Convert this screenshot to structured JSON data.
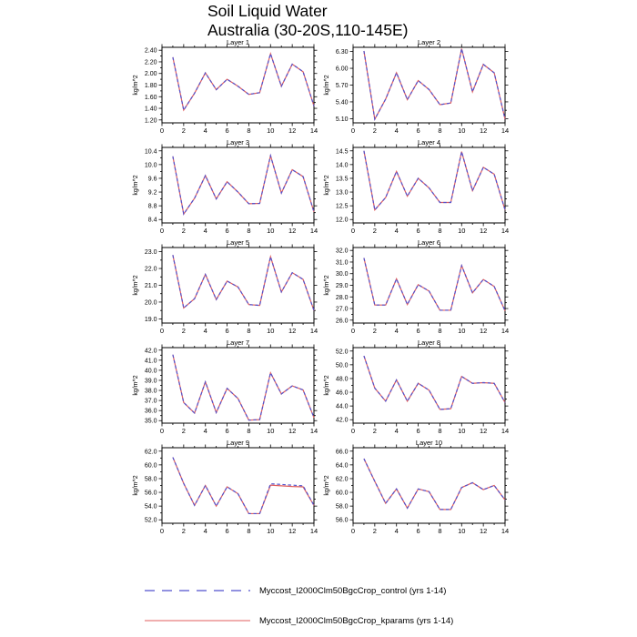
{
  "title": {
    "line1": "Soil Liquid Water",
    "line2": "Australia (30-20S,110-145E)"
  },
  "ylabel": "kg/m^2",
  "colors": {
    "control": "#5252cd",
    "kparams": "#e05e5e",
    "axis": "#000000"
  },
  "legend": [
    {
      "label": "Myccost_I2000Clm50BgcCrop_control (yrs 1-14)",
      "style": "dashed",
      "color": "#5252cd"
    },
    {
      "label": "Myccost_I2000Clm50BgcCrop_kparams (yrs 1-14)",
      "style": "solid",
      "color": "#e05e5e"
    }
  ],
  "chart_data": [
    {
      "type": "line",
      "title": "Layer 1",
      "ylabel": "kg/m^2",
      "x": [
        1,
        2,
        3,
        4,
        5,
        6,
        7,
        8,
        9,
        10,
        11,
        12,
        13,
        14
      ],
      "xlim": [
        0,
        14
      ],
      "xticks": {
        "start": 0,
        "end": 14,
        "step": 2,
        "minor": 1
      },
      "ylim": [
        1.15,
        2.45
      ],
      "yticks": {
        "start": 1.2,
        "end": 2.4,
        "step": 0.2,
        "decimals": 2
      },
      "series": [
        {
          "name": "Myccost_I2000Clm50BgcCrop_control",
          "values": [
            2.28,
            1.37,
            1.66,
            2.01,
            1.72,
            1.9,
            1.78,
            1.64,
            1.67,
            2.34,
            1.78,
            2.16,
            2.03,
            1.44
          ]
        },
        {
          "name": "Myccost_I2000Clm50BgcCrop_kparams",
          "values": [
            2.28,
            1.37,
            1.66,
            2.01,
            1.72,
            1.9,
            1.78,
            1.64,
            1.67,
            2.34,
            1.78,
            2.16,
            2.03,
            1.44
          ]
        }
      ]
    },
    {
      "type": "line",
      "title": "Layer 2",
      "ylabel": "kg/m^2",
      "x": [
        1,
        2,
        3,
        4,
        5,
        6,
        7,
        8,
        9,
        10,
        11,
        12,
        13,
        14
      ],
      "xlim": [
        0,
        14
      ],
      "xticks": {
        "start": 0,
        "end": 14,
        "step": 2,
        "minor": 1
      },
      "ylim": [
        5.025,
        6.375
      ],
      "yticks": {
        "start": 5.1,
        "end": 6.3,
        "step": 0.3,
        "decimals": 2
      },
      "series": [
        {
          "name": "Myccost_I2000Clm50BgcCrop_control",
          "values": [
            6.31,
            5.09,
            5.45,
            5.92,
            5.44,
            5.78,
            5.62,
            5.35,
            5.38,
            6.35,
            5.58,
            6.07,
            5.92,
            5.09
          ]
        },
        {
          "name": "Myccost_I2000Clm50BgcCrop_kparams",
          "values": [
            6.31,
            5.09,
            5.45,
            5.92,
            5.44,
            5.78,
            5.62,
            5.35,
            5.38,
            6.35,
            5.58,
            6.07,
            5.92,
            5.09
          ]
        }
      ]
    },
    {
      "type": "line",
      "title": "Layer 3",
      "ylabel": "kg/m^2",
      "x": [
        1,
        2,
        3,
        4,
        5,
        6,
        7,
        8,
        9,
        10,
        11,
        12,
        13,
        14
      ],
      "xlim": [
        0,
        14
      ],
      "xticks": {
        "start": 0,
        "end": 14,
        "step": 2,
        "minor": 1
      },
      "ylim": [
        8.3,
        10.5
      ],
      "yticks": {
        "start": 8.4,
        "end": 10.4,
        "step": 0.4,
        "decimals": 1
      },
      "series": [
        {
          "name": "Myccost_I2000Clm50BgcCrop_control",
          "values": [
            10.24,
            8.56,
            9.02,
            9.68,
            9.0,
            9.5,
            9.2,
            8.86,
            8.87,
            10.26,
            9.17,
            9.85,
            9.65,
            8.62
          ]
        },
        {
          "name": "Myccost_I2000Clm50BgcCrop_kparams",
          "values": [
            10.24,
            8.56,
            9.02,
            9.68,
            9.0,
            9.5,
            9.2,
            8.86,
            8.87,
            10.26,
            9.17,
            9.85,
            9.65,
            8.62
          ]
        }
      ]
    },
    {
      "type": "line",
      "title": "Layer 4",
      "ylabel": "kg/m^2",
      "x": [
        1,
        2,
        3,
        4,
        5,
        6,
        7,
        8,
        9,
        10,
        11,
        12,
        13,
        14
      ],
      "xlim": [
        0,
        14
      ],
      "xticks": {
        "start": 0,
        "end": 14,
        "step": 2,
        "minor": 1
      },
      "ylim": [
        11.875,
        14.625
      ],
      "yticks": {
        "start": 12.0,
        "end": 14.5,
        "step": 0.5,
        "decimals": 1
      },
      "series": [
        {
          "name": "Myccost_I2000Clm50BgcCrop_control",
          "values": [
            14.5,
            12.35,
            12.8,
            13.75,
            12.85,
            13.5,
            13.15,
            12.62,
            12.62,
            14.47,
            13.05,
            13.9,
            13.65,
            12.35
          ]
        },
        {
          "name": "Myccost_I2000Clm50BgcCrop_kparams",
          "values": [
            14.5,
            12.35,
            12.8,
            13.75,
            12.85,
            13.5,
            13.15,
            12.62,
            12.62,
            14.47,
            13.05,
            13.9,
            13.65,
            12.35
          ]
        }
      ]
    },
    {
      "type": "line",
      "title": "Layer 5",
      "ylabel": "kg/m^2",
      "x": [
        1,
        2,
        3,
        4,
        5,
        6,
        7,
        8,
        9,
        10,
        11,
        12,
        13,
        14
      ],
      "xlim": [
        0,
        14
      ],
      "xticks": {
        "start": 0,
        "end": 14,
        "step": 2,
        "minor": 1
      },
      "ylim": [
        18.75,
        23.25
      ],
      "yticks": {
        "start": 19.0,
        "end": 23.0,
        "step": 1.0,
        "decimals": 1
      },
      "series": [
        {
          "name": "Myccost_I2000Clm50BgcCrop_control",
          "values": [
            22.8,
            19.65,
            20.2,
            21.65,
            20.15,
            21.25,
            20.9,
            19.85,
            19.8,
            22.7,
            20.6,
            21.75,
            21.35,
            19.5
          ]
        },
        {
          "name": "Myccost_I2000Clm50BgcCrop_kparams",
          "values": [
            22.8,
            19.65,
            20.2,
            21.65,
            20.15,
            21.25,
            20.9,
            19.85,
            19.8,
            22.7,
            20.6,
            21.75,
            21.35,
            19.5
          ]
        }
      ]
    },
    {
      "type": "line",
      "title": "Layer 6",
      "ylabel": "kg/m^2",
      "x": [
        1,
        2,
        3,
        4,
        5,
        6,
        7,
        8,
        9,
        10,
        11,
        12,
        13,
        14
      ],
      "xlim": [
        0,
        14
      ],
      "xticks": {
        "start": 0,
        "end": 14,
        "step": 2,
        "minor": 1
      },
      "ylim": [
        25.75,
        32.25
      ],
      "yticks": {
        "start": 26.0,
        "end": 32.0,
        "step": 1.0,
        "decimals": 1
      },
      "series": [
        {
          "name": "Myccost_I2000Clm50BgcCrop_control",
          "values": [
            31.35,
            27.3,
            27.3,
            29.55,
            27.35,
            29.05,
            28.5,
            26.85,
            26.85,
            30.7,
            28.35,
            29.5,
            28.9,
            26.8
          ]
        },
        {
          "name": "Myccost_I2000Clm50BgcCrop_kparams",
          "values": [
            31.35,
            27.3,
            27.3,
            29.55,
            27.35,
            29.05,
            28.5,
            26.85,
            26.85,
            30.7,
            28.35,
            29.5,
            28.9,
            26.8
          ]
        }
      ]
    },
    {
      "type": "line",
      "title": "Layer 7",
      "ylabel": "kg/m^2",
      "x": [
        1,
        2,
        3,
        4,
        5,
        6,
        7,
        8,
        9,
        10,
        11,
        12,
        13,
        14
      ],
      "xlim": [
        0,
        14
      ],
      "xticks": {
        "start": 0,
        "end": 14,
        "step": 2,
        "minor": 1
      },
      "ylim": [
        34.75,
        42.25
      ],
      "yticks": {
        "start": 35.0,
        "end": 42.0,
        "step": 1.0,
        "decimals": 1
      },
      "series": [
        {
          "name": "Myccost_I2000Clm50BgcCrop_control",
          "values": [
            41.55,
            36.8,
            35.75,
            38.85,
            35.8,
            38.2,
            37.2,
            35.05,
            35.1,
            39.75,
            37.65,
            38.45,
            38.05,
            35.3
          ]
        },
        {
          "name": "Myccost_I2000Clm50BgcCrop_kparams",
          "values": [
            41.55,
            36.8,
            35.75,
            38.85,
            35.8,
            38.2,
            37.2,
            35.05,
            35.1,
            39.75,
            37.65,
            38.45,
            38.05,
            35.3
          ]
        }
      ]
    },
    {
      "type": "line",
      "title": "Layer 8",
      "ylabel": "kg/m^2",
      "x": [
        1,
        2,
        3,
        4,
        5,
        6,
        7,
        8,
        9,
        10,
        11,
        12,
        13,
        14
      ],
      "xlim": [
        0,
        14
      ],
      "xticks": {
        "start": 0,
        "end": 14,
        "step": 2,
        "minor": 1
      },
      "ylim": [
        41.5,
        52.5
      ],
      "yticks": {
        "start": 42.0,
        "end": 52.0,
        "step": 2.0,
        "decimals": 1
      },
      "series": [
        {
          "name": "Myccost_I2000Clm50BgcCrop_control",
          "values": [
            51.3,
            46.6,
            44.7,
            47.8,
            44.7,
            47.3,
            46.3,
            43.5,
            43.6,
            48.3,
            47.3,
            47.4,
            47.3,
            44.5
          ]
        },
        {
          "name": "Myccost_I2000Clm50BgcCrop_kparams",
          "values": [
            51.3,
            46.6,
            44.7,
            47.8,
            44.7,
            47.3,
            46.3,
            43.5,
            43.6,
            48.3,
            47.3,
            47.4,
            47.3,
            44.5
          ]
        }
      ]
    },
    {
      "type": "line",
      "title": "Layer 9",
      "ylabel": "kg/m^2",
      "x": [
        1,
        2,
        3,
        4,
        5,
        6,
        7,
        8,
        9,
        10,
        11,
        12,
        13,
        14
      ],
      "xlim": [
        0,
        14
      ],
      "xticks": {
        "start": 0,
        "end": 14,
        "step": 2,
        "minor": 1
      },
      "ylim": [
        51.5,
        62.5
      ],
      "yticks": {
        "start": 52.0,
        "end": 62.0,
        "step": 2.0,
        "decimals": 1
      },
      "series": [
        {
          "name": "Myccost_I2000Clm50BgcCrop_control",
          "values": [
            61.1,
            57.3,
            54.1,
            57.0,
            54.0,
            56.8,
            55.8,
            52.9,
            52.9,
            57.25,
            57.15,
            57.05,
            56.95,
            54.1
          ]
        },
        {
          "name": "Myccost_I2000Clm50BgcCrop_kparams",
          "values": [
            61.1,
            57.3,
            54.1,
            57.0,
            54.0,
            56.8,
            55.8,
            52.9,
            52.9,
            57.05,
            56.95,
            56.85,
            56.8,
            54.1
          ]
        }
      ]
    },
    {
      "type": "line",
      "title": "Layer 10",
      "ylabel": "kg/m^2",
      "x": [
        1,
        2,
        3,
        4,
        5,
        6,
        7,
        8,
        9,
        10,
        11,
        12,
        13,
        14
      ],
      "xlim": [
        0,
        14
      ],
      "xticks": {
        "start": 0,
        "end": 14,
        "step": 2,
        "minor": 1
      },
      "ylim": [
        55.5,
        66.5
      ],
      "yticks": {
        "start": 56.0,
        "end": 66.0,
        "step": 2.0,
        "decimals": 1
      },
      "series": [
        {
          "name": "Myccost_I2000Clm50BgcCrop_control",
          "values": [
            64.9,
            61.6,
            58.4,
            60.5,
            57.7,
            60.5,
            60.1,
            57.5,
            57.5,
            60.7,
            61.4,
            60.4,
            61.0,
            58.9
          ]
        },
        {
          "name": "Myccost_I2000Clm50BgcCrop_kparams",
          "values": [
            64.9,
            61.6,
            58.4,
            60.5,
            57.7,
            60.5,
            60.1,
            57.5,
            57.5,
            60.7,
            61.4,
            60.4,
            61.0,
            58.9
          ]
        }
      ]
    }
  ]
}
